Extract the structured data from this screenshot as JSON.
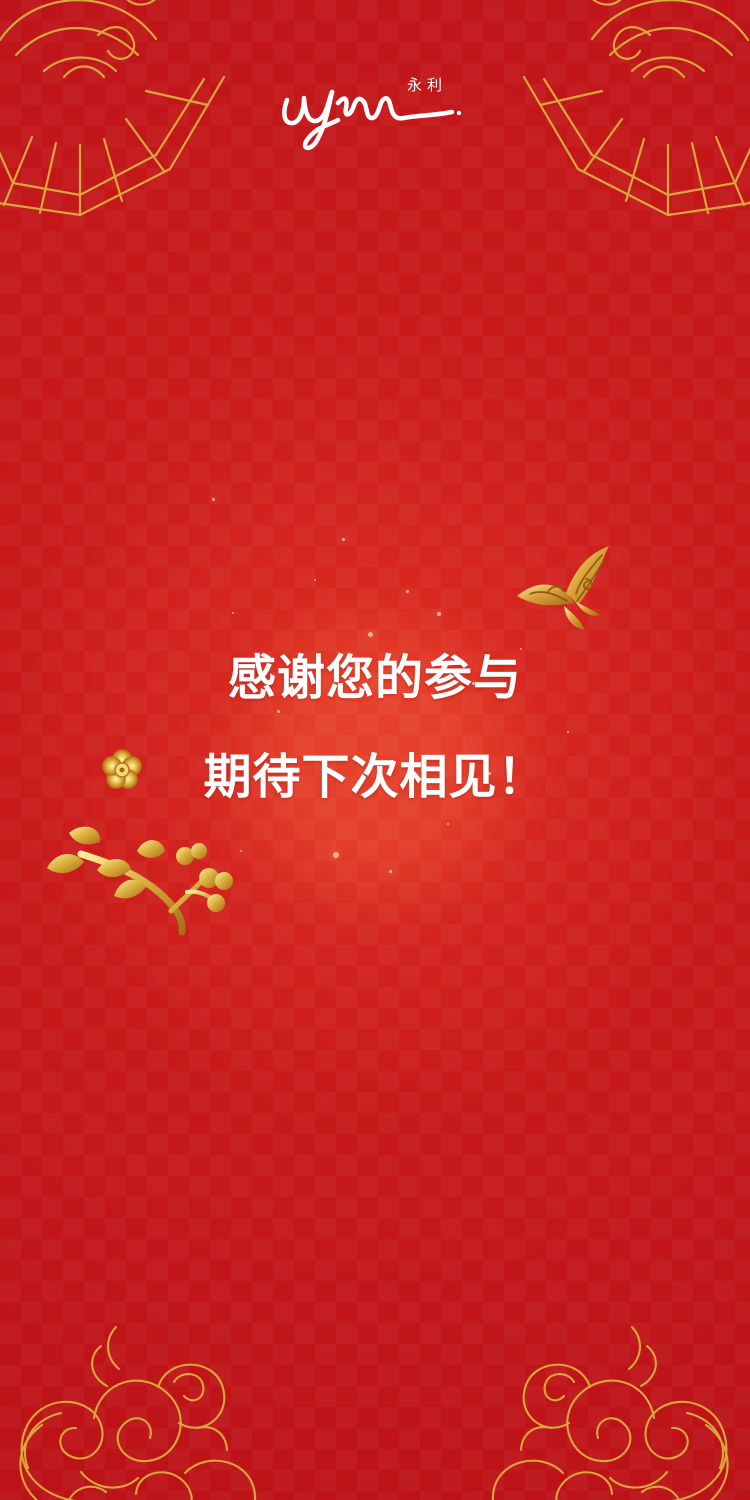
{
  "brand": {
    "latin_logo": "Wynn",
    "chinese_name": "永利"
  },
  "message": {
    "line1": "感谢您的参与",
    "line2": "期待下次相见！"
  },
  "colors": {
    "background": "#c8191b",
    "text": "#ffffff",
    "gold": "#d8a83a",
    "gold_light": "#f1d26a"
  },
  "decorations": [
    "top-left-fan-ornament",
    "top-right-fan-ornament",
    "butterfly-icon",
    "plum-blossom-icon",
    "gold-branch-icon",
    "bottom-left-cloud-ornament",
    "bottom-right-cloud-ornament"
  ]
}
